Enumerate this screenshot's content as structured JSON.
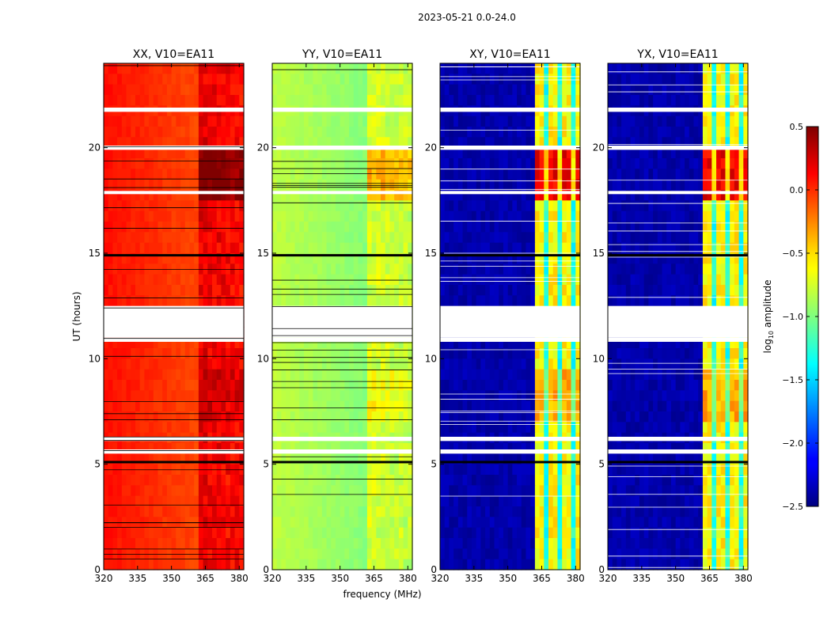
{
  "figure": {
    "suptitle": "2023-05-21 0.0-24.0",
    "xlabel": "frequency (MHz)",
    "ylabel": "UT (hours)"
  },
  "chart_data": {
    "type": "heatmap",
    "x_range": [
      320,
      382
    ],
    "y_range": [
      0,
      24
    ],
    "x_ticks": [
      320,
      335,
      350,
      365,
      380
    ],
    "y_ticks": [
      0,
      5,
      10,
      15,
      20
    ],
    "panels": [
      {
        "id": "xx",
        "title": "XX, V10=EA11",
        "base": 0.05,
        "hot": 0.38,
        "style": "parallel"
      },
      {
        "id": "yy",
        "title": "YY, V10=EA11",
        "base": -0.85,
        "hot": 0.35,
        "style": "parallel"
      },
      {
        "id": "xy",
        "title": "XY, V10=EA11",
        "base": -2.45,
        "hot": 1.35,
        "style": "cross"
      },
      {
        "id": "yx",
        "title": "YX, V10=EA11",
        "base": -2.45,
        "hot": 1.35,
        "style": "cross"
      }
    ],
    "flagged_bands_ut": [
      [
        11.0,
        12.5
      ],
      [
        21.7,
        21.9
      ],
      [
        19.9,
        20.1
      ],
      [
        17.8,
        17.95
      ],
      [
        6.1,
        6.3
      ],
      [
        10.8,
        11.0
      ],
      [
        5.5,
        5.7
      ]
    ],
    "black_lines_ut": [
      5.1,
      14.9
    ],
    "hot_freq_mhz": [
      [
        363,
        382
      ]
    ],
    "colorbar": {
      "label": "log",
      "label_sub": "10",
      "label_rest": " amplitude",
      "range": [
        -2.5,
        0.5
      ],
      "ticks": [
        {
          "value": 0.5,
          "label": "0.5"
        },
        {
          "value": 0.0,
          "label": "0.0"
        },
        {
          "value": -0.5,
          "label": "−0.5"
        },
        {
          "value": -1.0,
          "label": "−1.0"
        },
        {
          "value": -1.5,
          "label": "−1.5"
        },
        {
          "value": -2.0,
          "label": "−2.0"
        },
        {
          "value": -2.5,
          "label": "−2.5"
        }
      ]
    }
  }
}
